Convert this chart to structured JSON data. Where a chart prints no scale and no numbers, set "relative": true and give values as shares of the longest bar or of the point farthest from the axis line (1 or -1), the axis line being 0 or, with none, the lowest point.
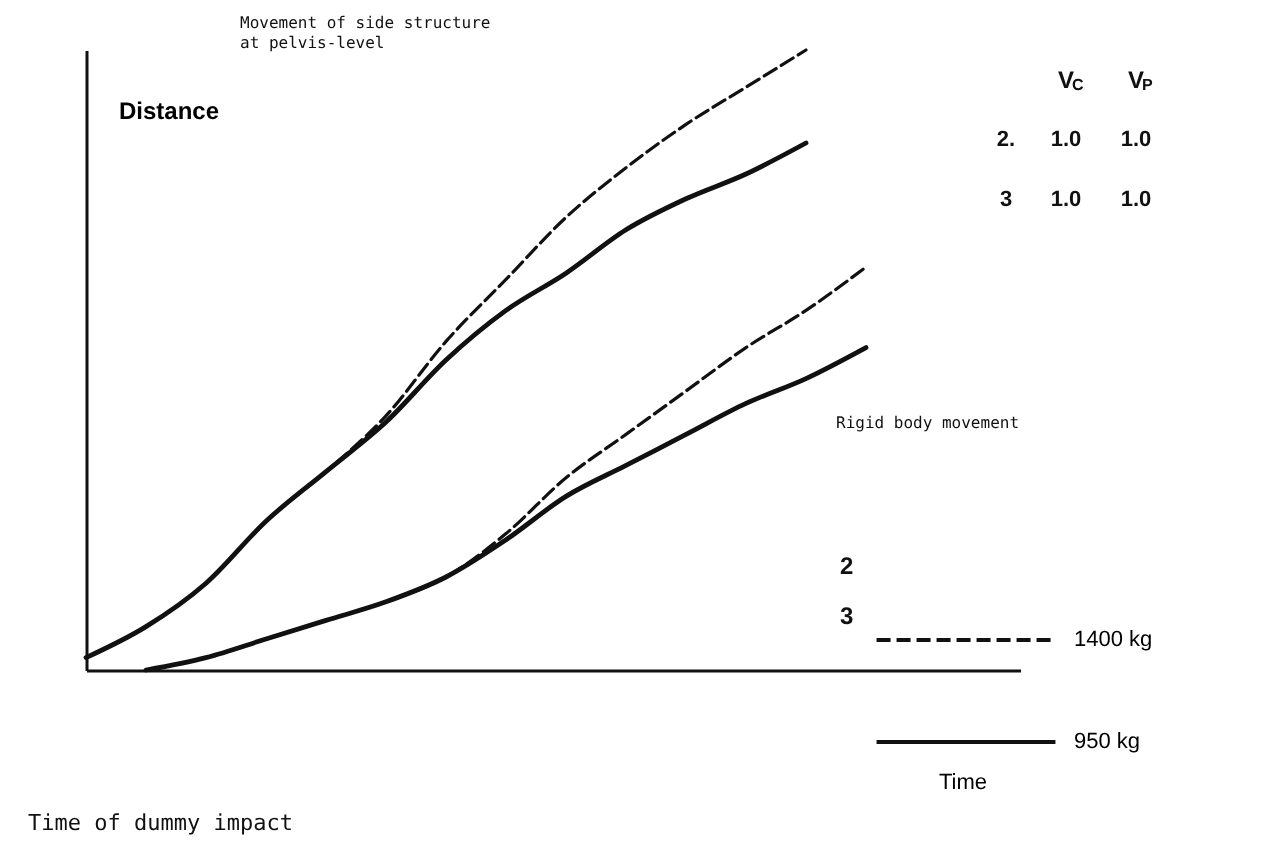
{
  "chart_data": {
    "type": "line",
    "relative": true,
    "xlabel": "Time",
    "ylabel": "Distance",
    "grid": false,
    "legend": "right",
    "marker": "none",
    "categories": [
      null,
      null,
      null,
      null,
      null,
      null,
      null,
      null,
      null,
      null,
      null,
      null,
      null,
      null
    ],
    "series": [
      {
        "name": "1400 kg",
        "color": "#111111",
        "line_style": "dashed",
        "values": [
          0.02,
          0.07,
          0.14,
          0.24,
          0.32,
          0.41,
          0.53,
          0.63,
          0.73,
          0.81,
          0.88,
          0.94,
          1,
          null
        ]
      },
      {
        "name": "950 kg",
        "color": "#111111",
        "line_style": "solid",
        "values": [
          0.02,
          0.07,
          0.14,
          0.24,
          0.32,
          0.4,
          0.5,
          0.58,
          0.64,
          0.71,
          0.76,
          0.8,
          0.85,
          null
        ]
      },
      {
        "color": "#111111",
        "line_style": "dashed",
        "values": [
          null,
          0,
          0.02,
          0.05,
          0.08,
          0.11,
          0.15,
          0.22,
          0.31,
          0.38,
          0.45,
          0.52,
          0.58,
          0.65
        ]
      },
      {
        "color": "#111111",
        "line_style": "solid",
        "values": [
          null,
          0,
          0.02,
          0.05,
          0.08,
          0.11,
          0.15,
          0.21,
          0.28,
          0.33,
          0.38,
          0.43,
          0.47,
          0.52
        ]
      }
    ],
    "annotations": [
      "Movement of side structure\nat pelvis-level",
      "Rigid body movement",
      "Time of dummy impact",
      "V$_{C}$",
      "V$_{P}$",
      "2.",
      "3",
      "1.0",
      "1.0",
      "1.0",
      "1.0",
      "2",
      "3"
    ]
  }
}
